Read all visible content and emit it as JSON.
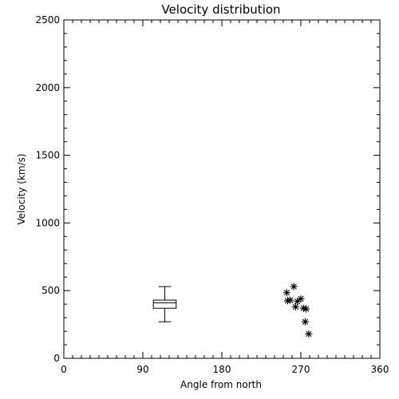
{
  "chart_data": {
    "type": "scatter",
    "title": "Velocity distribution",
    "xlabel": "Angle from north",
    "ylabel": "Velocity (km/s)",
    "xlim": [
      0,
      360
    ],
    "ylim": [
      0,
      2500
    ],
    "x_major_ticks": [
      0,
      90,
      180,
      270,
      360
    ],
    "x_tick_labels": [
      "0",
      "90",
      "180",
      "270",
      "360"
    ],
    "x_minor_step": 10,
    "y_major_ticks": [
      0,
      500,
      1000,
      1500,
      2000,
      2500
    ],
    "y_tick_labels": [
      "0",
      "500",
      "1000",
      "1500",
      "2000",
      "2500"
    ],
    "y_minor_step": 100,
    "grid": false,
    "boxplot": {
      "x": 115,
      "half_width": 13,
      "whisker_low": 270,
      "q1": 370,
      "median": 410,
      "q3": 430,
      "whisker_high": 530
    },
    "points": [
      {
        "x": 254,
        "y": 485
      },
      {
        "x": 258,
        "y": 430
      },
      {
        "x": 255,
        "y": 425
      },
      {
        "x": 262,
        "y": 530
      },
      {
        "x": 266,
        "y": 420
      },
      {
        "x": 270,
        "y": 440
      },
      {
        "x": 264,
        "y": 380
      },
      {
        "x": 273,
        "y": 370
      },
      {
        "x": 276,
        "y": 365
      },
      {
        "x": 275,
        "y": 270
      },
      {
        "x": 279,
        "y": 180
      }
    ]
  }
}
